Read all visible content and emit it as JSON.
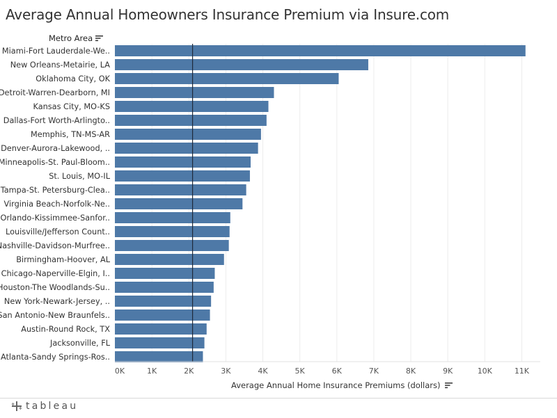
{
  "page": {
    "title": "Average Annual Homeowners Insurance Premium via Insure.com",
    "footer_logo": "tableau",
    "icons": {
      "sort": "sort-descending-icon",
      "logo": "tableau-plus-icon"
    }
  },
  "chart_data": {
    "type": "bar",
    "orientation": "horizontal",
    "title": "Average Annual Homeowners Insurance Premium via Insure.com",
    "row_header": "Metro Area",
    "xlabel": "Average Annual Home Insurance Premiums (dollars)",
    "xlim": [
      0,
      11500
    ],
    "x_ticks": [
      0,
      1000,
      2000,
      3000,
      4000,
      5000,
      6000,
      7000,
      8000,
      9000,
      10000,
      11000
    ],
    "x_tick_labels": [
      "0K",
      "1K",
      "2K",
      "3K",
      "4K",
      "5K",
      "6K",
      "7K",
      "8K",
      "9K",
      "10K",
      "11K"
    ],
    "reference_line": 2100,
    "bar_color": "#4e79a7",
    "categories": [
      "Miami-Fort Lauderdale-We..",
      "New Orleans-Metairie, LA",
      "Oklahoma City, OK",
      "Detroit-Warren-Dearborn, MI",
      "Kansas City, MO-KS",
      "Dallas-Fort Worth-Arlingto..",
      "Memphis, TN-MS-AR",
      "Denver-Aurora-Lakewood, ..",
      "Minneapolis-St. Paul-Bloom..",
      "St. Louis, MO-IL",
      "Tampa-St. Petersburg-Clea..",
      "Virginia Beach-Norfolk-Ne..",
      "Orlando-Kissimmee-Sanfor..",
      "Louisville/Jefferson Count..",
      "Nashville-Davidson-Murfree..",
      "Birmingham-Hoover, AL",
      "Chicago-Naperville-Elgin, I..",
      "Houston-The Woodlands-Su..",
      "New York-Newark-Jersey, ..",
      "San Antonio-New Braunfels..",
      "Austin-Round Rock, TX",
      "Jacksonville, FL",
      "Atlanta-Sandy Springs-Ros.."
    ],
    "values": [
      11100,
      6850,
      6050,
      4300,
      4150,
      4100,
      3950,
      3870,
      3670,
      3650,
      3550,
      3450,
      3120,
      3100,
      3080,
      2950,
      2700,
      2670,
      2600,
      2570,
      2480,
      2420,
      2380
    ],
    "grid": {
      "vertical": true,
      "horizontal": false
    }
  }
}
